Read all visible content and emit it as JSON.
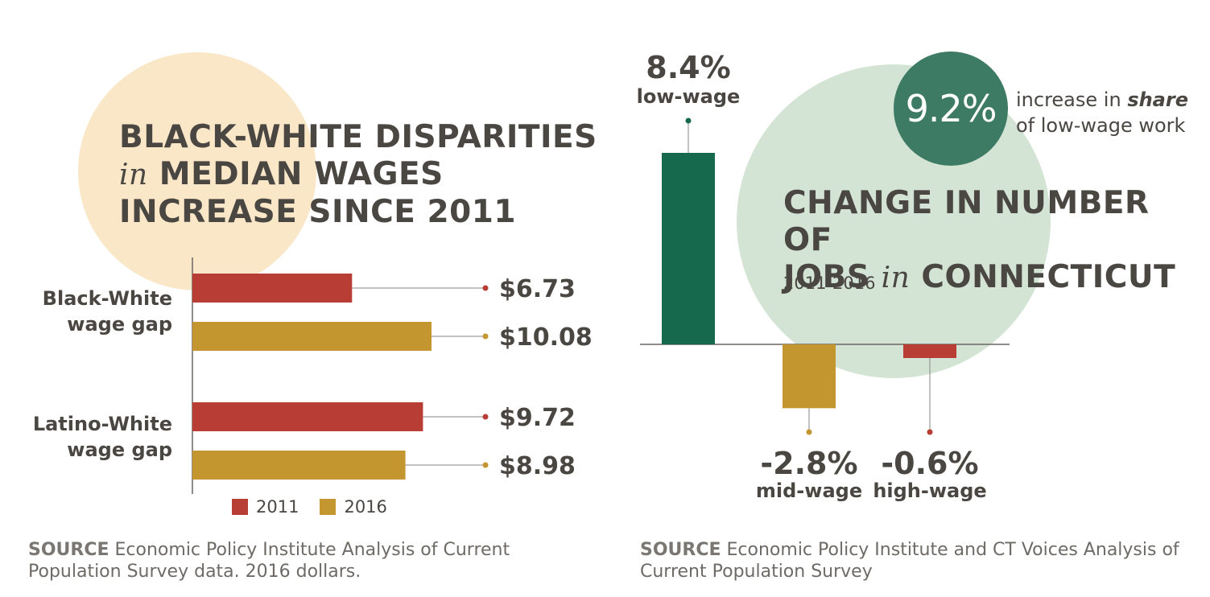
{
  "left": {
    "title": {
      "line1": "BLACK-WHITE DISPARITIES",
      "line2_italic": "in",
      "line2": "MEDIAN WAGES",
      "line3": "INCREASE SINCE 2011"
    },
    "groups": [
      "Black-White\nwage gap",
      "Latino-White\nwage gap"
    ],
    "legend": [
      {
        "label": "2011",
        "color": "#b83e35"
      },
      {
        "label": "2016",
        "color": "#c4962f"
      }
    ],
    "source_key": "SOURCE",
    "source_text": "Economic Policy Institute Analysis of Current Population Survey data. 2016 dollars."
  },
  "right": {
    "title": {
      "line1": "CHANGE IN NUMBER OF",
      "line2": "JOBS",
      "line2_italic": "in",
      "line2b": "CONNECTICUT"
    },
    "subtitle": "2011-2016",
    "stat_value": "9.2%",
    "stat_caption_pre": "increase in",
    "stat_caption_em": "share",
    "stat_caption_post": "of low-wage work",
    "source_key": "SOURCE",
    "source_text": "Economic Policy Institute and CT Voices Analysis of Current Population Survey"
  },
  "chart_data": [
    {
      "type": "bar",
      "orientation": "horizontal",
      "categories": [
        "Black-White wage gap",
        "Latino-White wage gap"
      ],
      "series": [
        {
          "name": "2011",
          "color": "#b83e35",
          "values": [
            6.73,
            9.72
          ],
          "labels": [
            "$6.73",
            "$9.72"
          ]
        },
        {
          "name": "2016",
          "color": "#c4962f",
          "values": [
            10.08,
            8.98
          ],
          "labels": [
            "$10.08",
            "$8.98"
          ]
        }
      ],
      "title": "BLACK-WHITE DISPARITIES in MEDIAN WAGES INCREASE SINCE 2011",
      "xlim": [
        0,
        11.1
      ],
      "legend": "bottom"
    },
    {
      "type": "bar",
      "orientation": "vertical",
      "categories": [
        "low-wage",
        "mid-wage",
        "high-wage"
      ],
      "values": [
        8.4,
        -2.8,
        -0.6
      ],
      "labels": [
        "8.4%",
        "-2.8%",
        "-0.6%"
      ],
      "colors": [
        "#17694e",
        "#c4962f",
        "#b83e35"
      ],
      "title": "CHANGE IN NUMBER OF JOBS in CONNECTICUT",
      "subtitle": "2011-2016",
      "ylim": [
        -3.2,
        10
      ]
    }
  ]
}
